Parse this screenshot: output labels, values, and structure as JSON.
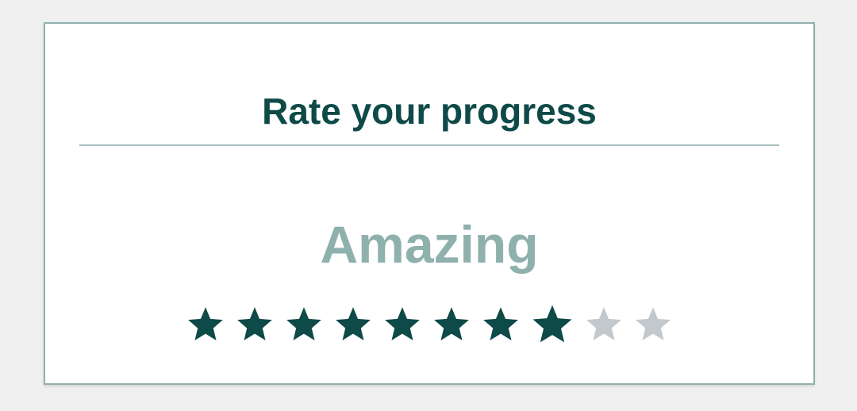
{
  "title": "Rate your progress",
  "rating": {
    "label": "Amazing",
    "value": 8,
    "max": 10
  },
  "icons": {
    "star": "star-icon"
  },
  "colors": {
    "title": "#0e4a47",
    "label": "#8fb1ae",
    "star_filled": "#0e4a47",
    "star_empty": "#c3c8cc",
    "border": "#8fb1ae",
    "background": "#f0f0f0",
    "card": "#ffffff"
  }
}
